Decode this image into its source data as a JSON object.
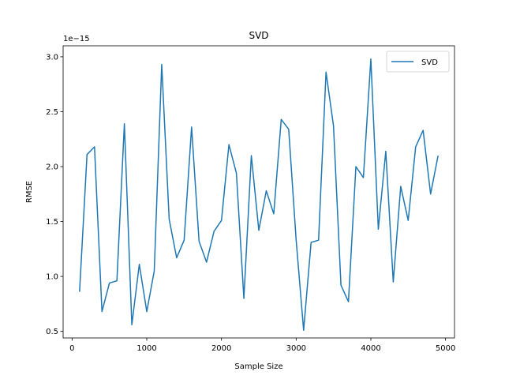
{
  "chart_data": {
    "type": "line",
    "title": "SVD",
    "xlabel": "Sample Size",
    "ylabel": "RMSE",
    "y_offset_label": "1e−15",
    "xlim": [
      -120,
      5120
    ],
    "ylim": [
      0.44,
      3.1
    ],
    "xticks": [
      0,
      1000,
      2000,
      3000,
      4000,
      5000
    ],
    "xtick_labels": [
      "0",
      "1000",
      "2000",
      "3000",
      "4000",
      "5000"
    ],
    "yticks": [
      0.5,
      1.0,
      1.5,
      2.0,
      2.5,
      3.0
    ],
    "ytick_labels": [
      "0.5",
      "1.0",
      "1.5",
      "2.0",
      "2.5",
      "3.0"
    ],
    "grid": false,
    "legend_position": "upper-right",
    "series": [
      {
        "name": "SVD",
        "color": "#1f77b4",
        "x": [
          100,
          200,
          300,
          400,
          500,
          600,
          700,
          800,
          900,
          1000,
          1100,
          1200,
          1300,
          1400,
          1500,
          1600,
          1700,
          1800,
          1900,
          2000,
          2100,
          2200,
          2300,
          2400,
          2500,
          2600,
          2700,
          2800,
          2900,
          3000,
          3100,
          3200,
          3300,
          3400,
          3500,
          3600,
          3700,
          3800,
          3900,
          4000,
          4100,
          4200,
          4300,
          4400,
          4500,
          4600,
          4700,
          4800,
          4900
        ],
        "y": [
          0.86,
          2.11,
          2.18,
          0.68,
          0.94,
          0.96,
          2.39,
          0.56,
          1.11,
          0.68,
          1.05,
          2.93,
          1.52,
          1.17,
          1.33,
          2.36,
          1.32,
          1.13,
          1.41,
          1.51,
          2.2,
          1.94,
          0.8,
          2.1,
          1.42,
          1.78,
          1.57,
          2.43,
          2.34,
          1.33,
          0.51,
          1.31,
          1.33,
          2.86,
          2.37,
          0.92,
          0.77,
          2.0,
          1.9,
          2.98,
          1.43,
          2.14,
          0.95,
          1.82,
          1.51,
          2.18,
          2.33,
          1.75,
          2.1
        ]
      }
    ]
  }
}
